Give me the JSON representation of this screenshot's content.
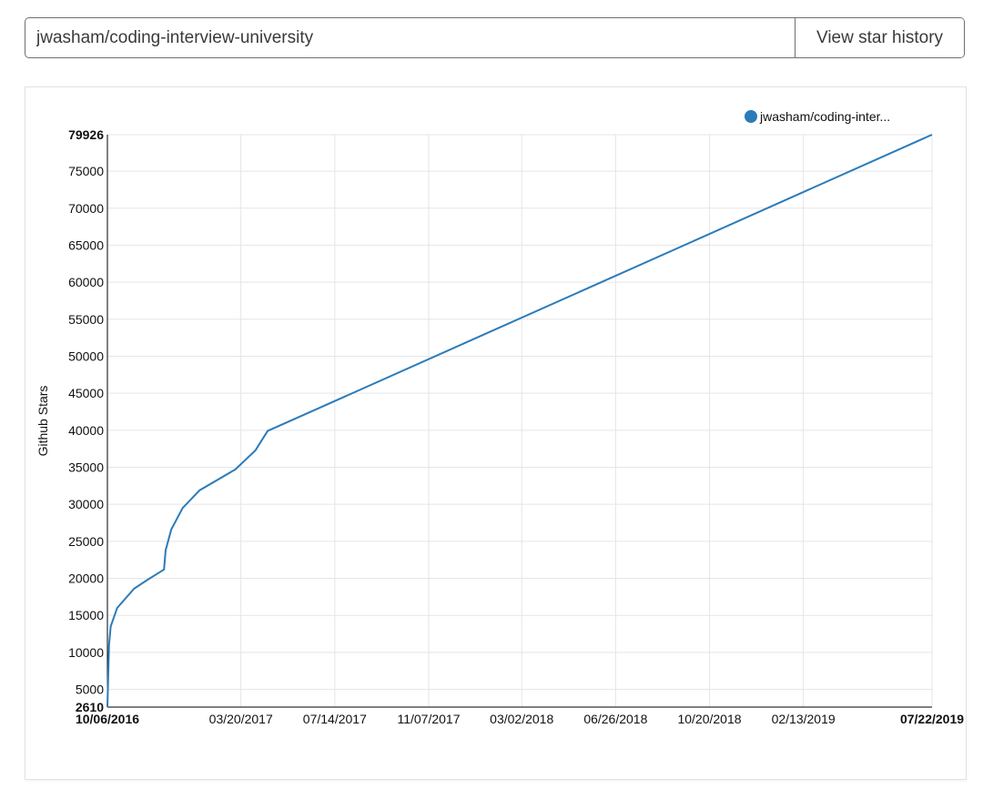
{
  "search": {
    "value": "jwasham/coding-interview-university",
    "button_label": "View star history"
  },
  "colors": {
    "series": "#2b7bb9",
    "grid": "#e5e5ea"
  },
  "chart_data": {
    "type": "line",
    "title": "",
    "xlabel": "",
    "ylabel": "Github Stars",
    "legend_position": "top-right",
    "grid": true,
    "xlim": [
      "2016-10-06",
      "2019-07-22"
    ],
    "ylim": [
      2610,
      79926
    ],
    "y_ticks": [
      {
        "value": 2610,
        "label": "2610",
        "bold": true
      },
      {
        "value": 5000,
        "label": "5000"
      },
      {
        "value": 10000,
        "label": "10000"
      },
      {
        "value": 15000,
        "label": "15000"
      },
      {
        "value": 20000,
        "label": "20000"
      },
      {
        "value": 25000,
        "label": "25000"
      },
      {
        "value": 30000,
        "label": "30000"
      },
      {
        "value": 35000,
        "label": "35000"
      },
      {
        "value": 40000,
        "label": "40000"
      },
      {
        "value": 45000,
        "label": "45000"
      },
      {
        "value": 50000,
        "label": "50000"
      },
      {
        "value": 55000,
        "label": "55000"
      },
      {
        "value": 60000,
        "label": "60000"
      },
      {
        "value": 65000,
        "label": "65000"
      },
      {
        "value": 70000,
        "label": "70000"
      },
      {
        "value": 75000,
        "label": "75000"
      },
      {
        "value": 79926,
        "label": "79926",
        "bold": true
      }
    ],
    "x_ticks": [
      {
        "date": "2016-10-06",
        "label": "10/06/2016",
        "bold": true
      },
      {
        "date": "2017-03-20",
        "label": "03/20/2017"
      },
      {
        "date": "2017-07-14",
        "label": "07/14/2017"
      },
      {
        "date": "2017-11-07",
        "label": "11/07/2017"
      },
      {
        "date": "2018-03-02",
        "label": "03/02/2018"
      },
      {
        "date": "2018-06-26",
        "label": "06/26/2018"
      },
      {
        "date": "2018-10-20",
        "label": "10/20/2018"
      },
      {
        "date": "2019-02-13",
        "label": "02/13/2019"
      },
      {
        "date": "2019-07-22",
        "label": "07/22/2019",
        "bold": true
      }
    ],
    "series": [
      {
        "name": "jwasham/coding-inter...",
        "points": [
          {
            "x": "2016-10-06",
            "y": 2610
          },
          {
            "x": "2016-10-08",
            "y": 11000
          },
          {
            "x": "2016-10-10",
            "y": 13500
          },
          {
            "x": "2016-10-18",
            "y": 16000
          },
          {
            "x": "2016-11-08",
            "y": 18600
          },
          {
            "x": "2016-11-23",
            "y": 19700
          },
          {
            "x": "2016-12-15",
            "y": 21200
          },
          {
            "x": "2016-12-17",
            "y": 23800
          },
          {
            "x": "2016-12-24",
            "y": 26600
          },
          {
            "x": "2017-01-07",
            "y": 29500
          },
          {
            "x": "2017-01-28",
            "y": 31900
          },
          {
            "x": "2017-03-13",
            "y": 34700
          },
          {
            "x": "2017-04-07",
            "y": 37300
          },
          {
            "x": "2017-04-22",
            "y": 39900
          },
          {
            "x": "2019-07-22",
            "y": 79926
          }
        ]
      }
    ]
  }
}
